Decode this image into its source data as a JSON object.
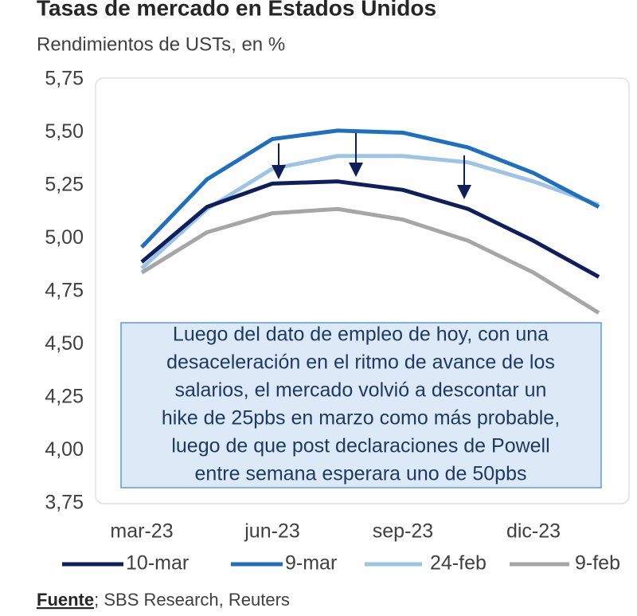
{
  "chart_data": {
    "type": "line",
    "title": "Tasas de mercado en Estados Unidos",
    "subtitle": "Rendimientos de USTs, en %",
    "categories": [
      "mar-23",
      null,
      "jun-23",
      null,
      "sep-23",
      null,
      "dic-23",
      null
    ],
    "series": [
      {
        "name": "10-mar",
        "color": "#0f1f5c",
        "values": [
          4.89,
          5.15,
          5.26,
          5.27,
          5.23,
          5.14,
          4.99,
          4.82
        ]
      },
      {
        "name": "9-mar",
        "color": "#1f6fc0",
        "values": [
          4.96,
          5.28,
          5.47,
          5.51,
          5.5,
          5.43,
          5.31,
          5.15
        ]
      },
      {
        "name": "24-feb",
        "color": "#9dc3e6",
        "values": [
          4.86,
          5.14,
          5.33,
          5.39,
          5.39,
          5.36,
          5.27,
          5.16
        ]
      },
      {
        "name": "9-feb",
        "color": "#a6a6a6",
        "values": [
          4.84,
          5.03,
          5.12,
          5.14,
          5.09,
          4.99,
          4.84,
          4.65
        ]
      }
    ],
    "ylim": [
      3.75,
      5.75
    ],
    "yticks": [
      {
        "value": 3.75,
        "label": "3,75"
      },
      {
        "value": 4,
        "label": "4,00"
      },
      {
        "value": 4.25,
        "label": "4,25"
      },
      {
        "value": 4.5,
        "label": "4,50"
      },
      {
        "value": 4.75,
        "label": "4,75"
      },
      {
        "value": 5,
        "label": "5,00"
      },
      {
        "value": 5.25,
        "label": "5,25"
      },
      {
        "value": 5.5,
        "label": "5,50"
      },
      {
        "value": 5.75,
        "label": "5,75"
      }
    ],
    "grid": false,
    "legend": "bottom",
    "annotation": [
      "Luego del dato de empleo de hoy, con una",
      "desaceleración en el ritmo de avance de los",
      "salarios, el mercado volvió a descontar un",
      "hike de 25pbs en marzo como más probable,",
      "luego de que post declaraciones de Powell",
      "entre semana esperara uno de 50pbs"
    ],
    "source_label": "Fuente",
    "source": "; SBS Research, Reuters"
  }
}
